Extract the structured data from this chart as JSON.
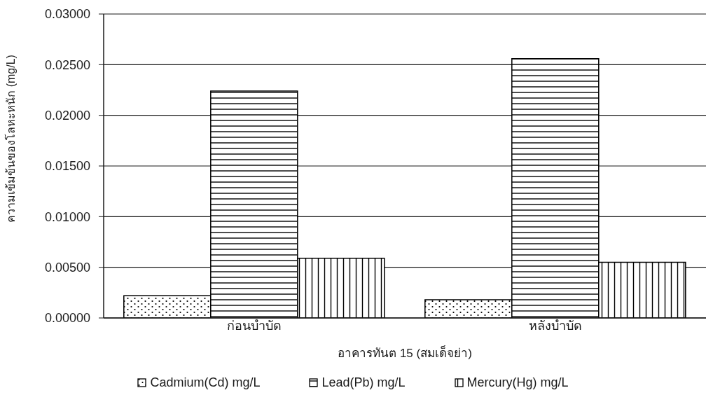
{
  "chart_data": {
    "type": "bar",
    "xlabel": "อาคารทันต 15 (สมเด็จย่า)",
    "ylabel": "ความเข้มข้นของโลหะหนัก (mg/L)",
    "categories": [
      "ก่อนบำบัด",
      "หลังบำบัด"
    ],
    "series": [
      {
        "name": "Cadmium(Cd) mg/L",
        "color": "#000000",
        "values": [
          0.0022,
          0.0018
        ]
      },
      {
        "name": "Lead(Pb) mg/L",
        "color": "#000000",
        "values": [
          0.0224,
          0.0256
        ]
      },
      {
        "name": "Mercury(Hg) mg/L",
        "color": "#000000",
        "values": [
          0.0059,
          0.0055
        ]
      }
    ],
    "ylim": [
      0,
      0.03
    ],
    "yticks": [
      {
        "value": 0,
        "label": "0.00000"
      },
      {
        "value": 0.005,
        "label": "0.00500"
      },
      {
        "value": 0.01,
        "label": "0.01000"
      },
      {
        "value": 0.015,
        "label": "0.01500"
      },
      {
        "value": 0.02,
        "label": "0.02000"
      },
      {
        "value": 0.025,
        "label": "0.02500"
      },
      {
        "value": 0.03,
        "label": "0.03000"
      }
    ],
    "grid": "y",
    "legend": "bottom"
  }
}
